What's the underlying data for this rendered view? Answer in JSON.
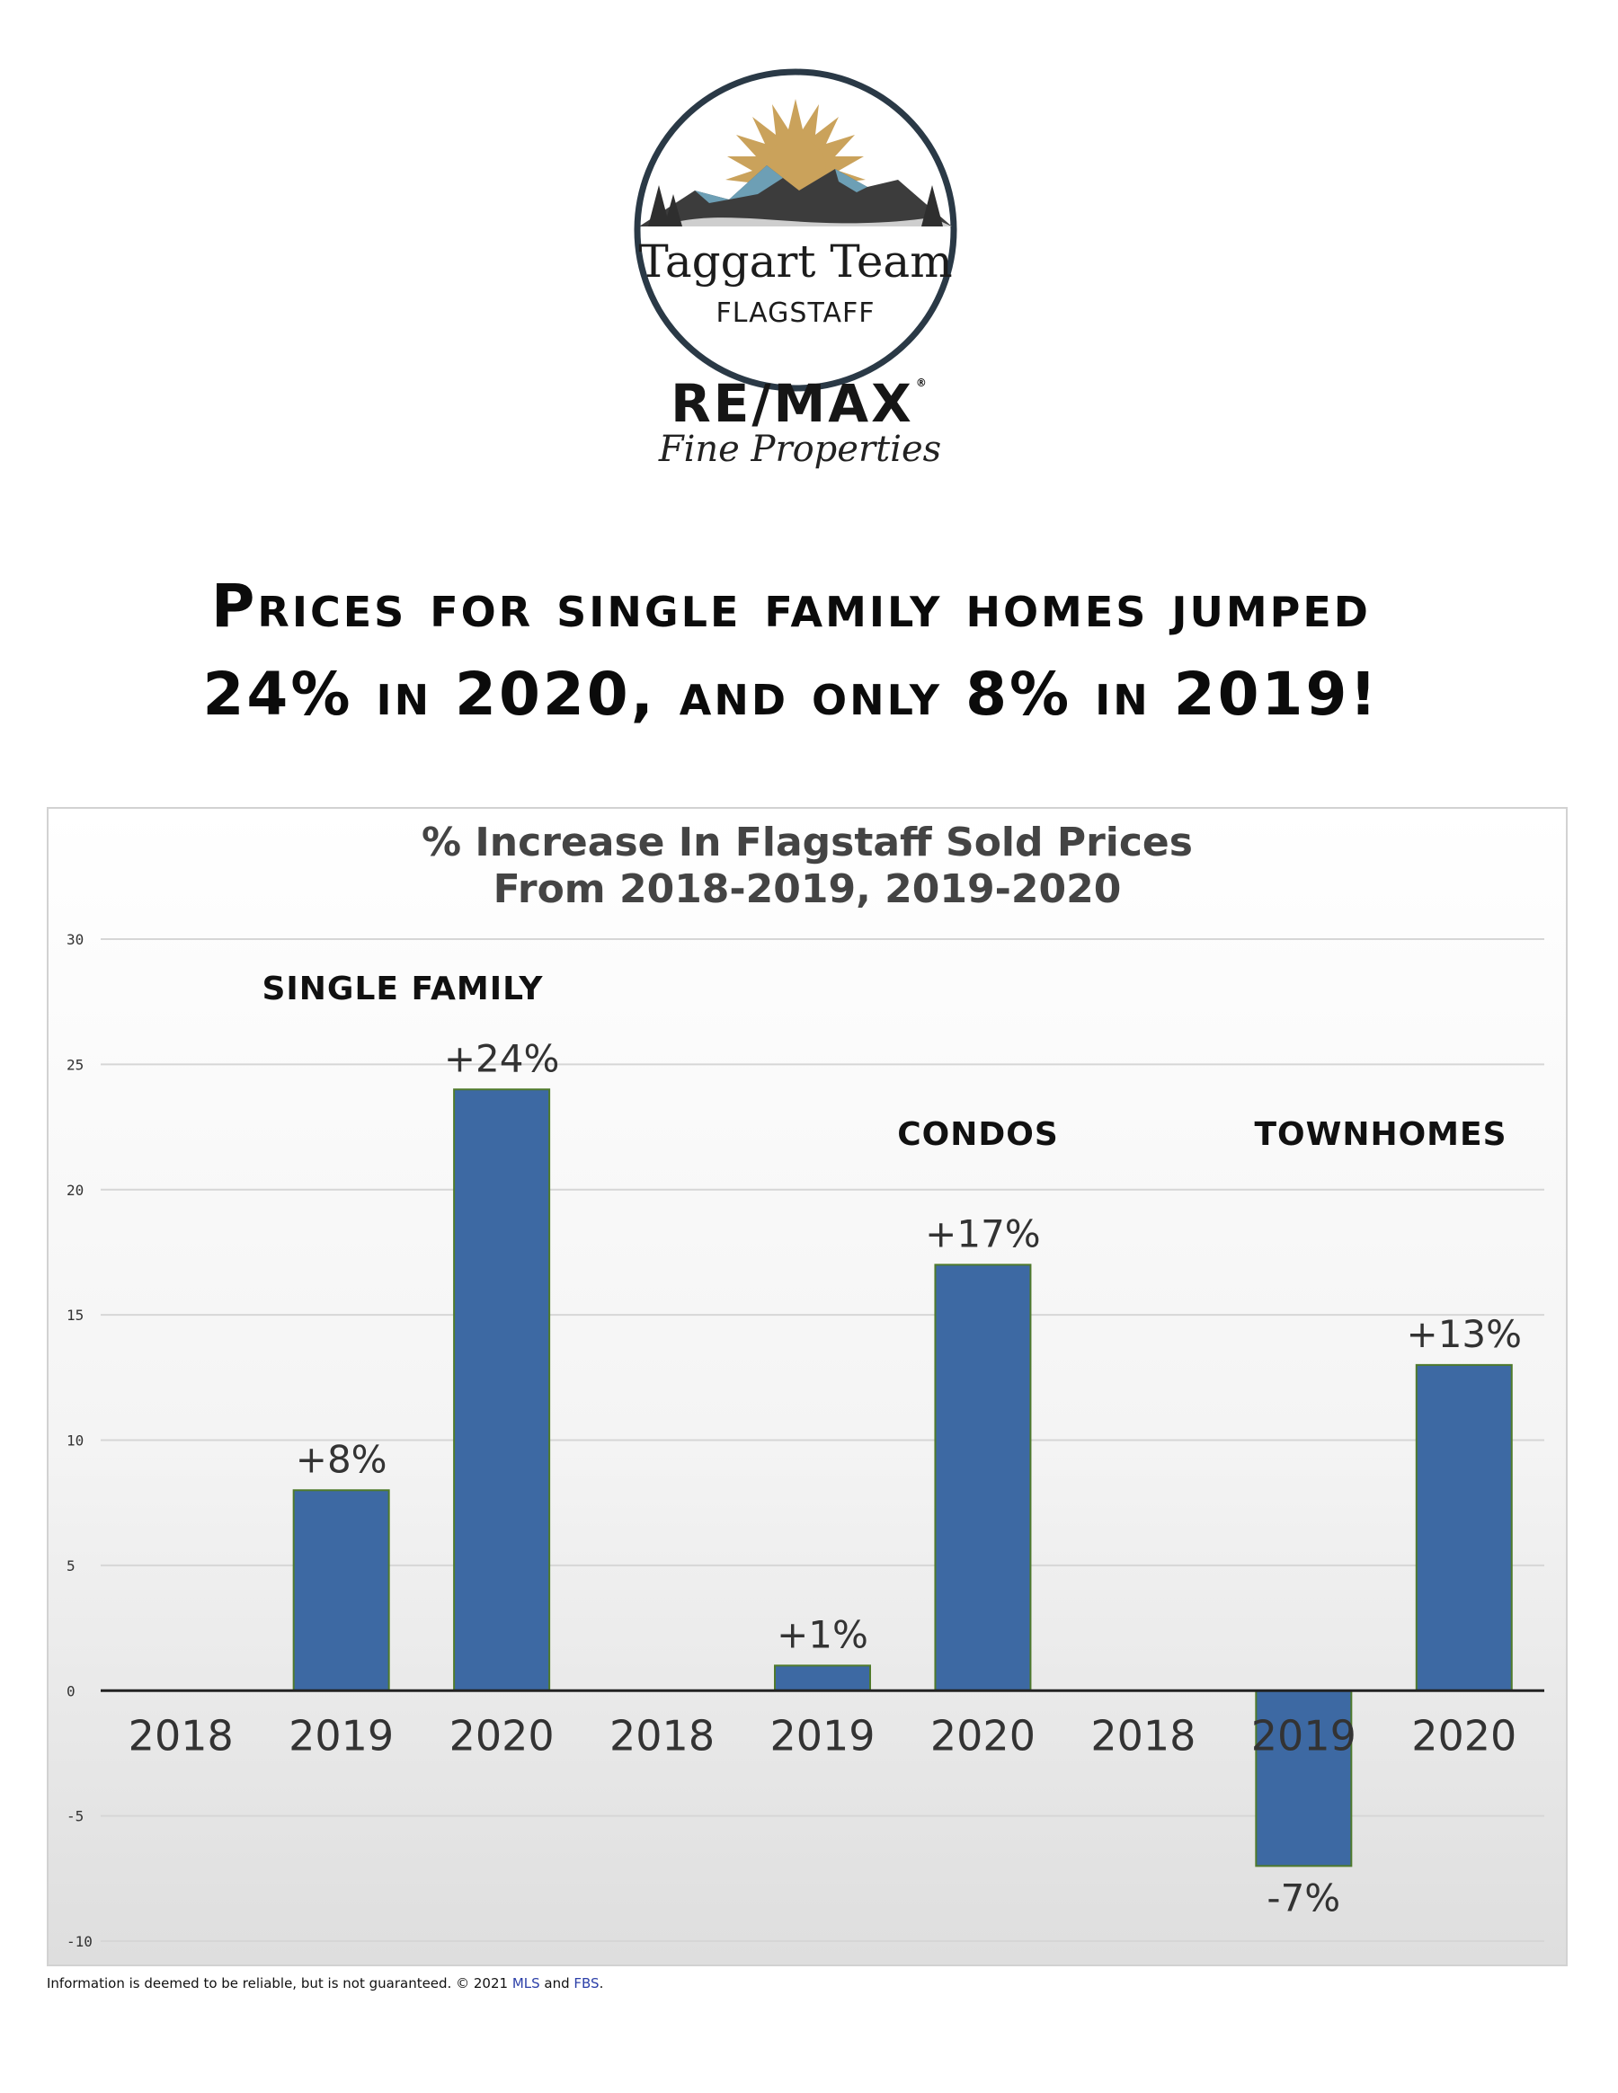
{
  "logo": {
    "team": "Taggart Team",
    "city": "FLAGSTAFF"
  },
  "brand": {
    "name": "RE/MAX",
    "reg": "®",
    "tagline": "Fine Properties"
  },
  "headline": {
    "line1": "Prices for single family homes jumped",
    "line2": "24% in 2020, and only 8% in 2019!"
  },
  "footer": {
    "text": "Information is deemed to be reliable, but is not guaranteed. © 2021 ",
    "link1": "MLS",
    "and": " and ",
    "link2": "FBS",
    "end": "."
  },
  "chart_data": {
    "type": "bar",
    "title": [
      "% Increase In Flagstaff Sold Prices",
      "From 2018-2019, 2019-2020"
    ],
    "xlabel": "",
    "ylabel": "",
    "ylim": [
      -10,
      30
    ],
    "yticks": [
      30,
      25,
      20,
      15,
      10,
      5,
      0,
      -5,
      -10
    ],
    "grid": true,
    "bar_color": "#3d69a3",
    "bar_edge_color": "#4f7a2c",
    "categories": [
      "2018",
      "2019",
      "2020",
      "2018",
      "2019",
      "2020",
      "2018",
      "2019",
      "2020"
    ],
    "values": [
      0,
      8,
      24,
      0,
      1,
      17,
      0,
      -7,
      13
    ],
    "data_labels": [
      "",
      "+8%",
      "+24%",
      "",
      "+1%",
      "+17%",
      "",
      "-7%",
      "+13%"
    ],
    "groups": [
      {
        "name": "SINGLE FAMILY",
        "categories": [
          0,
          1,
          2
        ]
      },
      {
        "name": "CONDOS",
        "categories": [
          3,
          4,
          5
        ]
      },
      {
        "name": "TOWNHOMES",
        "categories": [
          6,
          7,
          8
        ]
      }
    ]
  }
}
